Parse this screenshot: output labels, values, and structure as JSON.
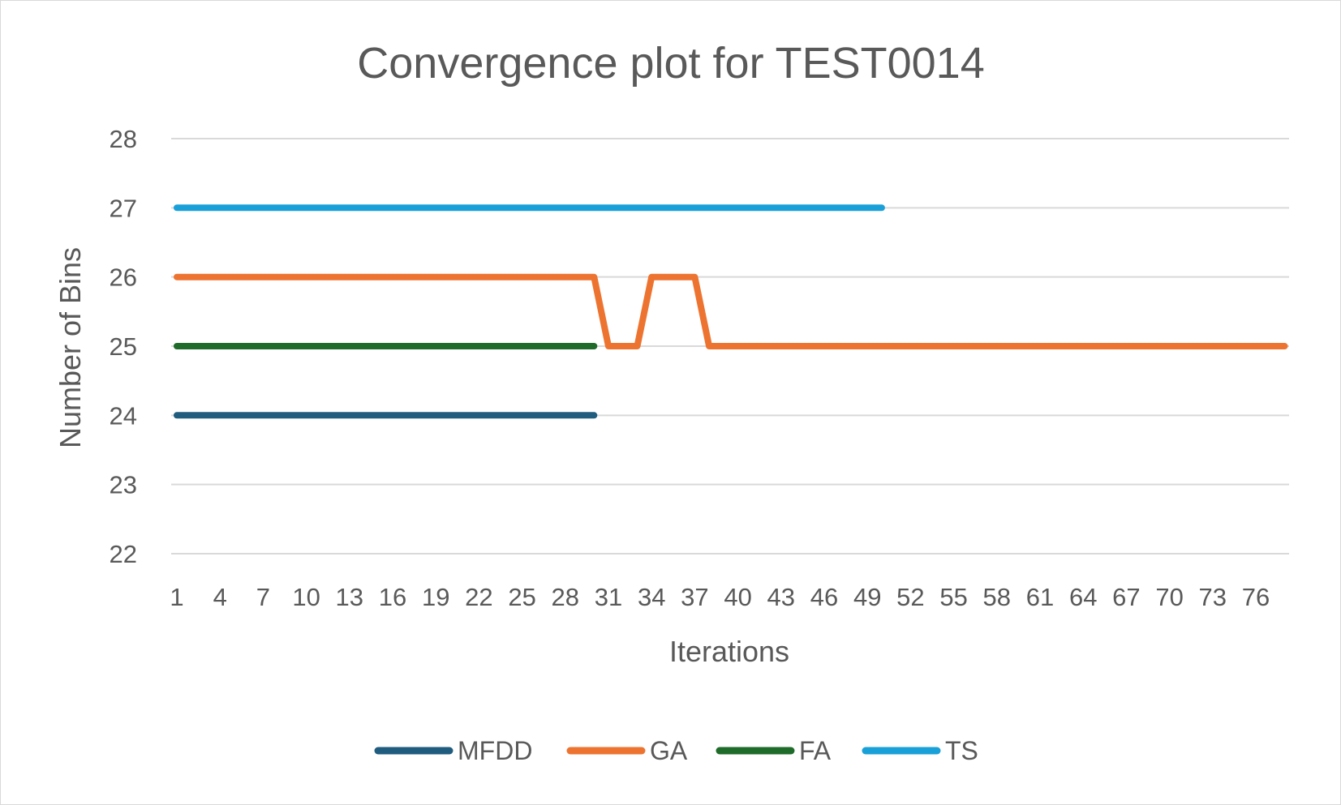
{
  "chart_data": {
    "type": "line",
    "title": "Convergence plot for TEST0014",
    "xlabel": "Iterations",
    "ylabel": "Number of Bins",
    "ylim": [
      22,
      28
    ],
    "yticks": [
      22,
      23,
      24,
      25,
      26,
      27,
      28
    ],
    "x_range": [
      1,
      78
    ],
    "xtick_labels": [
      1,
      4,
      7,
      10,
      13,
      16,
      19,
      22,
      25,
      28,
      31,
      34,
      37,
      40,
      43,
      46,
      49,
      52,
      55,
      58,
      61,
      64,
      67,
      70,
      73,
      76
    ],
    "grid": true,
    "legend_position": "bottom",
    "series": [
      {
        "name": "MFDD",
        "color": "#1f5c7e",
        "points": [
          [
            1,
            24
          ],
          [
            30,
            24
          ]
        ]
      },
      {
        "name": "GA",
        "color": "#ed7430",
        "points": [
          [
            1,
            26
          ],
          [
            30,
            26
          ],
          [
            31,
            25
          ],
          [
            33,
            25
          ],
          [
            34,
            26
          ],
          [
            37,
            26
          ],
          [
            38,
            25
          ],
          [
            78,
            25
          ]
        ]
      },
      {
        "name": "FA",
        "color": "#1f6b2a",
        "points": [
          [
            1,
            25
          ],
          [
            30,
            25
          ]
        ]
      },
      {
        "name": "TS",
        "color": "#1aa0d8",
        "points": [
          [
            1,
            27
          ],
          [
            50,
            27
          ]
        ]
      }
    ]
  }
}
